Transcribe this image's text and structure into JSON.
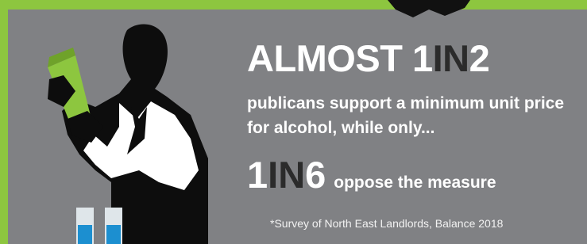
{
  "headline": {
    "prefix": "ALMOST",
    "number": "1",
    "word": "IN",
    "total": "2"
  },
  "body": "publicans support a minimum unit price for alcohol, while only...",
  "secondary": {
    "number": "1",
    "word": "IN",
    "total": "6",
    "suffix": "oppose the measure"
  },
  "source": "*Survey of North East Landlords, Balance 2018"
}
